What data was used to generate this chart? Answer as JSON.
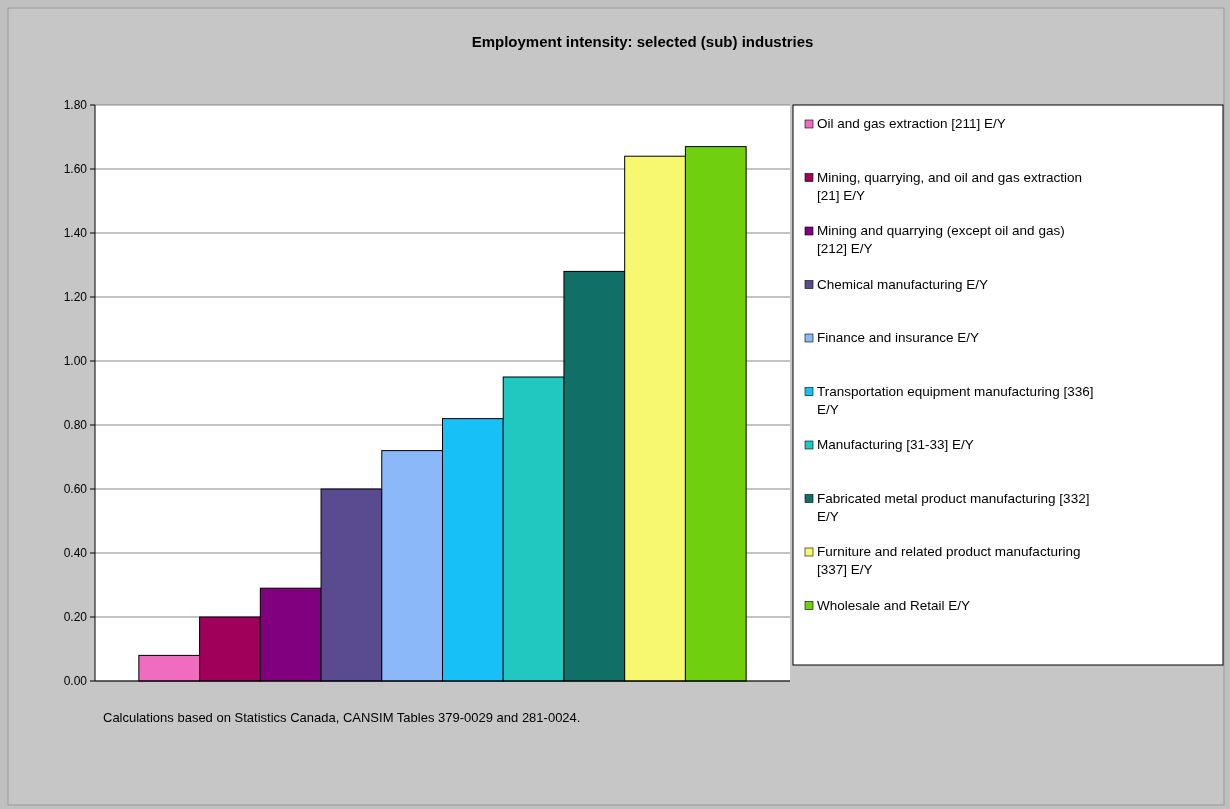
{
  "chart_data": {
    "type": "bar",
    "title": "Employment intensity: selected (sub) industries",
    "categories": [
      null
    ],
    "series": [
      {
        "name": "Oil and gas extraction [211] E/Y",
        "color": "#f06cc0",
        "values": [
          0.08
        ]
      },
      {
        "name": "Mining, quarrying, and oil and gas extraction [21] E/Y",
        "color": "#a0005a",
        "values": [
          0.2
        ]
      },
      {
        "name": "Mining and quarrying (except oil and gas) [212] E/Y",
        "color": "#800080",
        "values": [
          0.29
        ]
      },
      {
        "name": "Chemical manufacturing E/Y",
        "color": "#5a4a90",
        "values": [
          0.6
        ]
      },
      {
        "name": "Finance and insurance E/Y",
        "color": "#8ab8f8",
        "values": [
          0.72
        ]
      },
      {
        "name": "Transportation equipment manufacturing [336] E/Y",
        "color": "#18c0f8",
        "values": [
          0.82
        ]
      },
      {
        "name": "Manufacturing [31-33] E/Y",
        "color": "#20c8c0",
        "values": [
          0.95
        ]
      },
      {
        "name": "Fabricated metal product manufacturing [332] E/Y",
        "color": "#107068",
        "values": [
          1.28
        ]
      },
      {
        "name": "Furniture and related product manufacturing [337] E/Y",
        "color": "#f8f870",
        "values": [
          1.64
        ]
      },
      {
        "name": "Wholesale and Retail E/Y",
        "color": "#70d010",
        "values": [
          1.67
        ]
      }
    ],
    "ylim": [
      0,
      1.8
    ],
    "yticks": [
      {
        "value": 0,
        "label": "0.00"
      },
      {
        "value": 0.2,
        "label": "0.20"
      },
      {
        "value": 0.4,
        "label": "0.40"
      },
      {
        "value": 0.6,
        "label": "0.60"
      },
      {
        "value": 0.8,
        "label": "0.80"
      },
      {
        "value": 1,
        "label": "1.00"
      },
      {
        "value": 1.2,
        "label": "1.20"
      },
      {
        "value": 1.4,
        "label": "1.40"
      },
      {
        "value": 1.6,
        "label": "1.60"
      },
      {
        "value": 1.8,
        "label": "1.80"
      }
    ],
    "grid": "y",
    "legend": "right",
    "annotations": [
      "Calculations based on Statistics Canada, CANSIM Tables 379-0029 and 281-0024."
    ]
  }
}
